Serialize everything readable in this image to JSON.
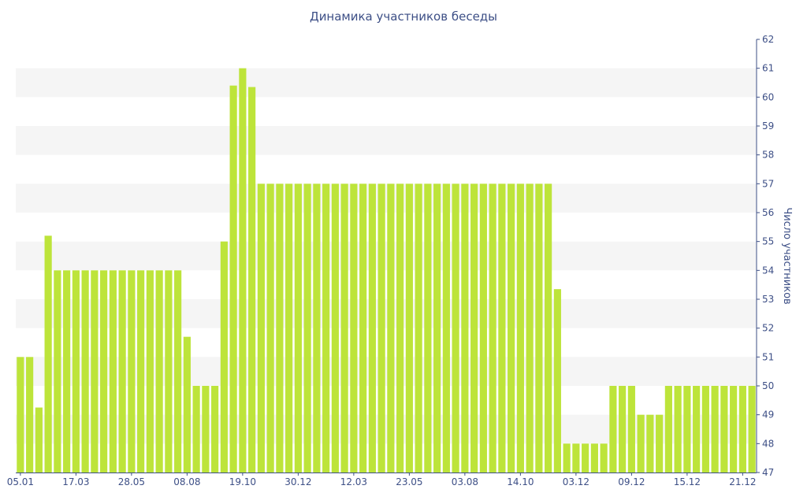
{
  "colors": {
    "bar": "#bde43a",
    "band": "#f5f5f5",
    "text": "#3d4f86",
    "axis": "#3d4f86"
  },
  "chart_data": {
    "type": "bar",
    "title": "Динамика участников беседы",
    "xlabel": "",
    "ylabel": "Число участников",
    "y_axis_position": "right",
    "ylim": [
      47,
      62
    ],
    "yticks": [
      47,
      48,
      49,
      50,
      51,
      52,
      53,
      54,
      55,
      56,
      57,
      58,
      59,
      60,
      61,
      62
    ],
    "alternating_bands": true,
    "x_tick_labels": [
      {
        "label": "05.01",
        "index": 0
      },
      {
        "label": "17.03",
        "index": 6
      },
      {
        "label": "28.05",
        "index": 12
      },
      {
        "label": "08.08",
        "index": 18
      },
      {
        "label": "19.10",
        "index": 24
      },
      {
        "label": "30.12",
        "index": 30
      },
      {
        "label": "12.03",
        "index": 36
      },
      {
        "label": "23.05",
        "index": 42
      },
      {
        "label": "03.08",
        "index": 48
      },
      {
        "label": "14.10",
        "index": 54
      },
      {
        "label": "03.12",
        "index": 60
      },
      {
        "label": "09.12",
        "index": 66
      },
      {
        "label": "15.12",
        "index": 72
      },
      {
        "label": "21.12",
        "index": 78
      }
    ],
    "series": [
      {
        "values": [
          51,
          51,
          49.25,
          55.2,
          54,
          54,
          54,
          54,
          54,
          54,
          54,
          54,
          54,
          54,
          54,
          54,
          54,
          54,
          51.7,
          50,
          50,
          50,
          55,
          60.4,
          61,
          60.35,
          57,
          57,
          57,
          57,
          57,
          57,
          57,
          57,
          57,
          57,
          57,
          57,
          57,
          57,
          57,
          57,
          57,
          57,
          57,
          57,
          57,
          57,
          57,
          57,
          57,
          57,
          57,
          57,
          57,
          57,
          57,
          57,
          53.35,
          48,
          48,
          48,
          48,
          48,
          50,
          50,
          50,
          49,
          49,
          49,
          50,
          50,
          50,
          50,
          50,
          50,
          50,
          50,
          50,
          50
        ]
      }
    ]
  }
}
